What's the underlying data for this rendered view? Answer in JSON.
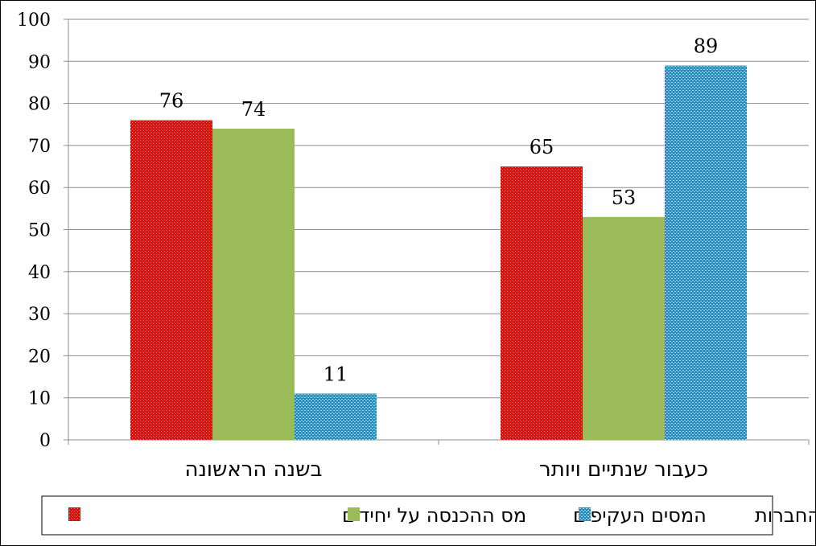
{
  "chart_data": {
    "type": "bar",
    "categories": [
      "כעבור שנתיים ויותר",
      "בשנה הראשונה"
    ],
    "series": [
      {
        "name": "מס ההכנסה על יחידים",
        "color": "#ff0000",
        "values": [
          65,
          76
        ]
      },
      {
        "name": "המסים העקיפים",
        "color": "#9bbb59",
        "values": [
          53,
          74
        ]
      },
      {
        "name": "מס החברות",
        "color": "#1f9bd0",
        "values": [
          89,
          11
        ]
      }
    ],
    "yticks": [
      "0",
      "10",
      "20",
      "30",
      "40",
      "50",
      "60",
      "70",
      "80",
      "90",
      "100"
    ],
    "ylim": [
      0,
      100
    ],
    "grid": true,
    "legend_position": "bottom",
    "data_labels": true
  }
}
